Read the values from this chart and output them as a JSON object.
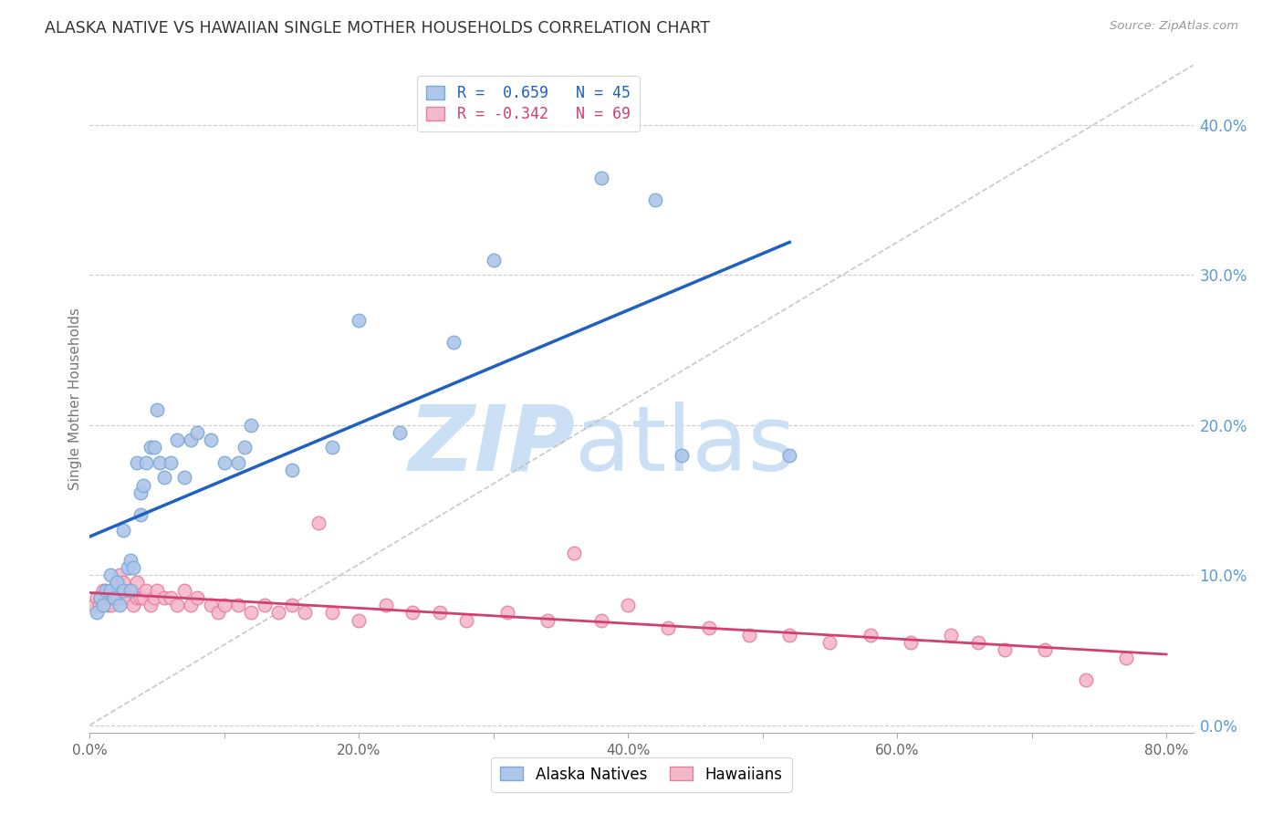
{
  "title": "ALASKA NATIVE VS HAWAIIAN SINGLE MOTHER HOUSEHOLDS CORRELATION CHART",
  "source": "Source: ZipAtlas.com",
  "ylabel": "Single Mother Households",
  "xlim": [
    0.0,
    0.82
  ],
  "ylim": [
    -0.005,
    0.44
  ],
  "xticks": [
    0.0,
    0.1,
    0.2,
    0.3,
    0.4,
    0.5,
    0.6,
    0.7,
    0.8
  ],
  "xtick_labels": [
    "0.0%",
    "",
    "20.0%",
    "",
    "40.0%",
    "",
    "60.0%",
    "",
    "80.0%"
  ],
  "yticks_right": [
    0.0,
    0.1,
    0.2,
    0.3,
    0.4
  ],
  "ytick_labels_right": [
    "0.0%",
    "10.0%",
    "20.0%",
    "30.0%",
    "40.0%"
  ],
  "background_color": "#ffffff",
  "grid_color": "#cccccc",
  "title_color": "#333333",
  "right_axis_color": "#5b9bd5",
  "alaska_color": "#aec6ea",
  "alaska_edge_color": "#7baad4",
  "hawaii_color": "#f4b8cb",
  "hawaii_edge_color": "#e87fa0",
  "alaska_line_color": "#2060c0",
  "hawaii_line_color": "#d04070",
  "diagonal_line_color": "#bbbbbb",
  "legend_r_alaska": "R =  0.659",
  "legend_n_alaska": "N = 45",
  "legend_r_hawaii": "R = -0.342",
  "legend_n_hawaii": "N = 69",
  "alaska_x": [
    0.005,
    0.008,
    0.01,
    0.012,
    0.015,
    0.015,
    0.018,
    0.02,
    0.022,
    0.025,
    0.025,
    0.028,
    0.03,
    0.03,
    0.032,
    0.035,
    0.038,
    0.038,
    0.04,
    0.042,
    0.045,
    0.048,
    0.05,
    0.052,
    0.055,
    0.06,
    0.065,
    0.07,
    0.075,
    0.08,
    0.09,
    0.1,
    0.11,
    0.115,
    0.12,
    0.15,
    0.18,
    0.2,
    0.23,
    0.27,
    0.3,
    0.38,
    0.42,
    0.44,
    0.52
  ],
  "alaska_y": [
    0.075,
    0.085,
    0.08,
    0.09,
    0.09,
    0.1,
    0.085,
    0.095,
    0.08,
    0.09,
    0.13,
    0.105,
    0.11,
    0.09,
    0.105,
    0.175,
    0.14,
    0.155,
    0.16,
    0.175,
    0.185,
    0.185,
    0.21,
    0.175,
    0.165,
    0.175,
    0.19,
    0.165,
    0.19,
    0.195,
    0.19,
    0.175,
    0.175,
    0.185,
    0.2,
    0.17,
    0.185,
    0.27,
    0.195,
    0.255,
    0.31,
    0.365,
    0.35,
    0.18,
    0.18
  ],
  "hawaii_x": [
    0.003,
    0.005,
    0.007,
    0.008,
    0.01,
    0.01,
    0.012,
    0.013,
    0.015,
    0.015,
    0.016,
    0.018,
    0.02,
    0.02,
    0.022,
    0.022,
    0.025,
    0.025,
    0.028,
    0.03,
    0.032,
    0.035,
    0.035,
    0.038,
    0.04,
    0.042,
    0.045,
    0.048,
    0.05,
    0.055,
    0.06,
    0.065,
    0.07,
    0.075,
    0.08,
    0.09,
    0.095,
    0.1,
    0.11,
    0.12,
    0.13,
    0.14,
    0.15,
    0.16,
    0.17,
    0.18,
    0.2,
    0.22,
    0.24,
    0.26,
    0.28,
    0.31,
    0.34,
    0.36,
    0.38,
    0.4,
    0.43,
    0.46,
    0.49,
    0.52,
    0.55,
    0.58,
    0.61,
    0.64,
    0.66,
    0.68,
    0.71,
    0.74,
    0.77
  ],
  "hawaii_y": [
    0.08,
    0.085,
    0.08,
    0.085,
    0.08,
    0.09,
    0.085,
    0.08,
    0.085,
    0.09,
    0.08,
    0.085,
    0.085,
    0.095,
    0.085,
    0.1,
    0.085,
    0.095,
    0.085,
    0.09,
    0.08,
    0.085,
    0.095,
    0.085,
    0.085,
    0.09,
    0.08,
    0.085,
    0.09,
    0.085,
    0.085,
    0.08,
    0.09,
    0.08,
    0.085,
    0.08,
    0.075,
    0.08,
    0.08,
    0.075,
    0.08,
    0.075,
    0.08,
    0.075,
    0.135,
    0.075,
    0.07,
    0.08,
    0.075,
    0.075,
    0.07,
    0.075,
    0.07,
    0.115,
    0.07,
    0.08,
    0.065,
    0.065,
    0.06,
    0.06,
    0.055,
    0.06,
    0.055,
    0.06,
    0.055,
    0.05,
    0.05,
    0.03,
    0.045
  ],
  "watermark_zip": "ZIP",
  "watermark_atlas": "atlas",
  "watermark_color": "#cce0f5",
  "watermark_fontsize_zip": 72,
  "watermark_fontsize_atlas": 72
}
